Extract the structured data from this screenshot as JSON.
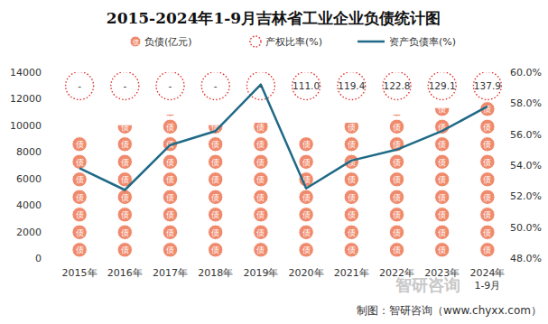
{
  "chart_data": {
    "type": "bar",
    "title": "2015-2024年1-9月吉林省工业企业负债统计图",
    "categories": [
      "2015年",
      "2016年",
      "2017年",
      "2018年",
      "2019年",
      "2020年",
      "2021年",
      "2022年",
      "2023年",
      "2024年\n1-9月"
    ],
    "series": [
      {
        "name": "负债(亿元)",
        "type": "bar",
        "color": "#f08a6c",
        "marker": "债",
        "values": [
          9300,
          10000,
          10800,
          10000,
          10200,
          9100,
          10200,
          10800,
          11300,
          12000
        ]
      },
      {
        "name": "产权比率(%)",
        "type": "text",
        "color": "#e0302a",
        "marker": "circle",
        "line_style": "dotted",
        "data_labels": true,
        "values": [
          null,
          null,
          null,
          null,
          null,
          111.0,
          119.4,
          122.8,
          129.1,
          137.9
        ],
        "value_labels": [
          "-",
          "-",
          "-",
          "-",
          "-",
          "111.0",
          "119.4",
          "122.8",
          "129.1",
          "137.9"
        ]
      },
      {
        "name": "资产负债率(%)",
        "type": "line",
        "color": "#1f6a86",
        "axis": "y2",
        "line_style": "solid",
        "values": [
          53.8,
          52.4,
          55.3,
          56.2,
          59.2,
          52.5,
          54.3,
          55.0,
          56.2,
          57.8
        ]
      }
    ],
    "ylim": [
      0,
      14000
    ],
    "yticks": [
      0,
      2000,
      4000,
      6000,
      8000,
      10000,
      12000,
      14000
    ],
    "y2lim": [
      48,
      60
    ],
    "y2ticks": [
      {
        "value": 48,
        "label": "48.0%"
      },
      {
        "value": 50,
        "label": "50.0%"
      },
      {
        "value": 52,
        "label": "52.0%"
      },
      {
        "value": 54,
        "label": "54.0%"
      },
      {
        "value": 56,
        "label": "56.0%"
      },
      {
        "value": 58,
        "label": "58.0%"
      },
      {
        "value": 60,
        "label": "60.0%"
      }
    ],
    "grid": false,
    "legend": "top",
    "watermark": "智研咨询",
    "source": "制图：智研咨询（www.chyxx.com）"
  }
}
